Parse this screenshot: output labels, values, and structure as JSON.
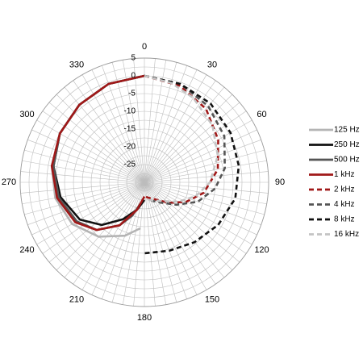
{
  "chart_data": {
    "type": "polar",
    "angle_labels": [
      "0",
      "30",
      "60",
      "90",
      "120",
      "150",
      "180",
      "210",
      "240",
      "270",
      "300",
      "330"
    ],
    "angle_label_values": [
      0,
      30,
      60,
      90,
      120,
      150,
      180,
      210,
      240,
      270,
      300,
      330
    ],
    "radial_labels": [
      "5",
      "0",
      "-5",
      "-10",
      "-15",
      "-20",
      "-25"
    ],
    "radial_label_values": [
      5,
      0,
      -5,
      -10,
      -15,
      -20,
      -25
    ],
    "rlim": [
      -30,
      5
    ],
    "radial_gridline_step_db": 2.5,
    "angular_gridline_step_deg": 5,
    "legend_position": "right",
    "series": [
      {
        "name": "125 Hz",
        "color": "#b4b4b4",
        "dash": "solid",
        "points": [
          [
            0,
            0
          ],
          [
            -20,
            -0.5
          ],
          [
            -40,
            -1.5
          ],
          [
            -60,
            -2.5
          ],
          [
            -80,
            -3.5
          ],
          [
            -100,
            -4.5
          ],
          [
            -120,
            -6.5
          ],
          [
            -140,
            -10
          ],
          [
            -160,
            -14
          ],
          [
            -175,
            -17
          ]
        ]
      },
      {
        "name": "250 Hz",
        "color": "#111111",
        "dash": "solid",
        "points": [
          [
            0,
            0
          ],
          [
            -20,
            -0.5
          ],
          [
            -40,
            -1.5
          ],
          [
            -60,
            -2.5
          ],
          [
            -80,
            -4
          ],
          [
            -100,
            -6
          ],
          [
            -120,
            -9
          ],
          [
            -135,
            -13
          ],
          [
            -150,
            -18
          ],
          [
            -165,
            -22
          ],
          [
            -180,
            -25
          ]
        ]
      },
      {
        "name": "500 Hz",
        "color": "#555555",
        "dash": "solid",
        "points": [
          [
            0,
            0
          ],
          [
            -20,
            -0.5
          ],
          [
            -40,
            -1.5
          ],
          [
            -60,
            -2.5
          ],
          [
            -80,
            -4
          ],
          [
            -100,
            -5.5
          ],
          [
            -120,
            -8
          ],
          [
            -135,
            -11
          ],
          [
            -150,
            -16
          ],
          [
            -160,
            -20
          ],
          [
            -170,
            -24
          ]
        ]
      },
      {
        "name": "1 kHz",
        "color": "#a01818",
        "dash": "solid",
        "points": [
          [
            0,
            0
          ],
          [
            -20,
            -0.5
          ],
          [
            -40,
            -1.5
          ],
          [
            -60,
            -2.5
          ],
          [
            -80,
            -3.5
          ],
          [
            -100,
            -5
          ],
          [
            -120,
            -7.5
          ],
          [
            -135,
            -11
          ],
          [
            -150,
            -16
          ],
          [
            -165,
            -22
          ],
          [
            -180,
            -26
          ]
        ]
      },
      {
        "name": "2 kHz",
        "color": "#a01818",
        "dash": "dashed",
        "points": [
          [
            0,
            0
          ],
          [
            20,
            -1
          ],
          [
            40,
            -3
          ],
          [
            60,
            -6
          ],
          [
            80,
            -9
          ],
          [
            100,
            -13
          ],
          [
            115,
            -17
          ],
          [
            130,
            -21
          ],
          [
            145,
            -24
          ],
          [
            165,
            -25.5
          ],
          [
            180,
            -26
          ]
        ]
      },
      {
        "name": "4 kHz",
        "color": "#555555",
        "dash": "dashed",
        "points": [
          [
            0,
            0
          ],
          [
            20,
            -0.5
          ],
          [
            40,
            -2
          ],
          [
            60,
            -4
          ],
          [
            80,
            -7
          ],
          [
            95,
            -10
          ],
          [
            110,
            -14
          ],
          [
            125,
            -19
          ],
          [
            140,
            -22.5
          ],
          [
            160,
            -24.5
          ]
        ]
      },
      {
        "name": "8 kHz",
        "color": "#111111",
        "dash": "dashed",
        "points": [
          [
            0,
            0
          ],
          [
            20,
            -0.5
          ],
          [
            40,
            -1
          ],
          [
            60,
            -2
          ],
          [
            80,
            -3
          ],
          [
            100,
            -4
          ],
          [
            120,
            -6
          ],
          [
            140,
            -8
          ],
          [
            160,
            -9.5
          ],
          [
            180,
            -10
          ]
        ]
      },
      {
        "name": "16 kHz",
        "color": "#c4c4c4",
        "dash": "dashed",
        "points": [
          [
            0,
            0
          ],
          [
            15,
            -1
          ],
          [
            30,
            -2.5
          ],
          [
            50,
            -5
          ],
          [
            70,
            -8
          ],
          [
            90,
            -11.5
          ],
          [
            105,
            -15
          ],
          [
            120,
            -19
          ],
          [
            135,
            -22.5
          ],
          [
            150,
            -24
          ],
          [
            170,
            -25
          ]
        ]
      }
    ]
  }
}
